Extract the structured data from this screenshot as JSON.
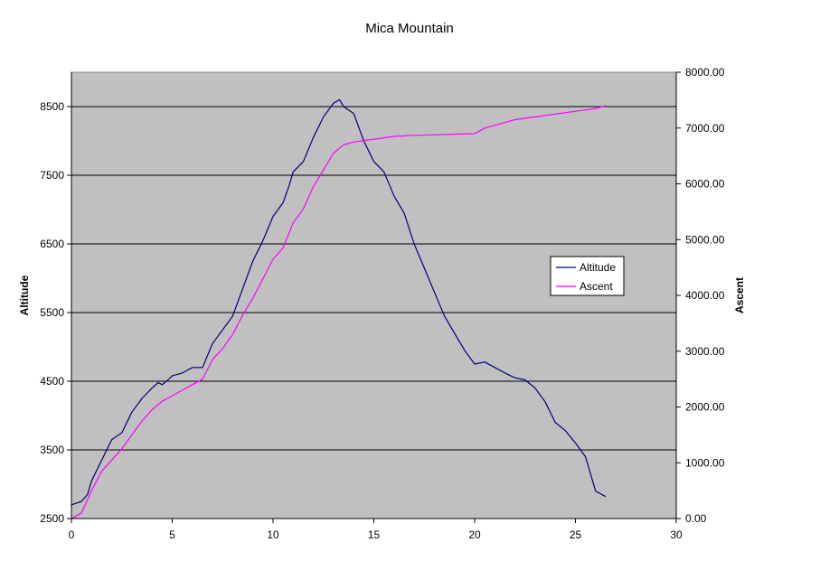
{
  "chart_data": {
    "type": "line",
    "title": "Mica Mountain",
    "xlabel": "",
    "ylabel": "Altitude",
    "y2label": "Ascent",
    "xlim": [
      0,
      30
    ],
    "ylim": [
      2500,
      9000
    ],
    "y2lim": [
      0,
      8000
    ],
    "x_ticks": [
      "0",
      "5",
      "10",
      "15",
      "20",
      "25",
      "30"
    ],
    "y_ticks": [
      "2500",
      "3500",
      "4500",
      "5500",
      "6500",
      "7500",
      "8500"
    ],
    "y2_ticks": [
      "0.00",
      "1000.00",
      "2000.00",
      "3000.00",
      "4000.00",
      "5000.00",
      "6000.00",
      "7000.00",
      "8000.00"
    ],
    "grid": "horizontal",
    "plot_background": "#c0c0c0",
    "legend_position": "right",
    "series": [
      {
        "name": "Altitude",
        "axis": "left",
        "color": "#000080",
        "x": [
          0,
          0.5,
          0.8,
          1.0,
          1.5,
          2.0,
          2.5,
          3.0,
          3.5,
          4.0,
          4.3,
          4.5,
          4.8,
          5.0,
          5.5,
          6.0,
          6.5,
          7.0,
          7.5,
          8.0,
          8.5,
          9.0,
          9.5,
          10.0,
          10.5,
          10.8,
          11.0,
          11.5,
          12.0,
          12.5,
          13.0,
          13.3,
          13.5,
          14.0,
          14.5,
          15.0,
          15.5,
          16.0,
          16.5,
          17.0,
          17.5,
          18.0,
          18.5,
          19.0,
          19.5,
          20.0,
          20.5,
          21.0,
          21.5,
          22.0,
          22.5,
          23.0,
          23.5,
          24.0,
          24.5,
          25.0,
          25.5,
          26.0,
          26.5
        ],
        "values": [
          2700,
          2750,
          2850,
          3050,
          3350,
          3650,
          3750,
          4050,
          4250,
          4400,
          4480,
          4450,
          4520,
          4580,
          4620,
          4700,
          4700,
          5050,
          5250,
          5450,
          5850,
          6250,
          6550,
          6900,
          7100,
          7350,
          7550,
          7700,
          8050,
          8350,
          8550,
          8600,
          8500,
          8400,
          8000,
          7700,
          7550,
          7200,
          6950,
          6500,
          6150,
          5800,
          5450,
          5200,
          4950,
          4750,
          4780,
          4700,
          4620,
          4550,
          4520,
          4400,
          4200,
          3900,
          3780,
          3600,
          3400,
          2900,
          2820
        ]
      },
      {
        "name": "Ascent",
        "axis": "right",
        "color": "#ff00ff",
        "x": [
          0,
          0.5,
          1.0,
          1.5,
          2.0,
          2.5,
          3.0,
          3.5,
          4.0,
          4.5,
          5.0,
          5.5,
          6.0,
          6.5,
          7.0,
          7.5,
          8.0,
          8.5,
          9.0,
          9.5,
          10.0,
          10.5,
          11.0,
          11.5,
          12.0,
          12.5,
          13.0,
          13.5,
          14.0,
          15.0,
          16.0,
          17.0,
          18.0,
          19.0,
          20.0,
          20.5,
          21.0,
          22.0,
          23.0,
          24.0,
          25.0,
          26.0,
          26.5
        ],
        "values": [
          0,
          100,
          500,
          850,
          1050,
          1250,
          1500,
          1750,
          1950,
          2100,
          2200,
          2300,
          2400,
          2500,
          2850,
          3050,
          3300,
          3650,
          3950,
          4300,
          4650,
          4850,
          5300,
          5550,
          5950,
          6250,
          6550,
          6700,
          6750,
          6800,
          6850,
          6870,
          6880,
          6890,
          6900,
          7000,
          7050,
          7150,
          7200,
          7250,
          7300,
          7350,
          7400
        ]
      }
    ]
  }
}
